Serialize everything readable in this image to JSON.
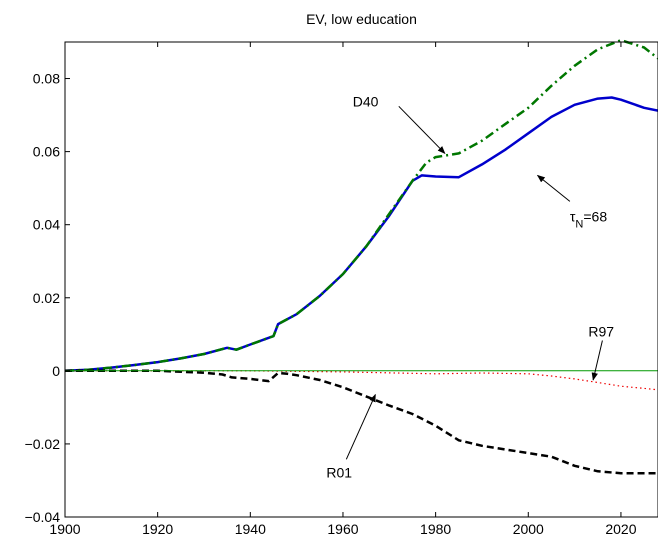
{
  "chart_data": {
    "type": "line",
    "title": "EV, low education",
    "xlabel": "",
    "ylabel": "",
    "xlim": [
      1900,
      2028
    ],
    "ylim": [
      -0.04,
      0.09
    ],
    "xticks": [
      1900,
      1920,
      1940,
      1960,
      1980,
      2000,
      2020
    ],
    "yticks": [
      -0.04,
      -0.02,
      0,
      0.02,
      0.04,
      0.06,
      0.08
    ],
    "xtick_labels": [
      "1900",
      "1920",
      "1940",
      "1960",
      "1980",
      "2000",
      "2020"
    ],
    "ytick_labels": [
      "−0.04",
      "−0.02",
      "0",
      "0.02",
      "0.04",
      "0.06",
      "0.08"
    ],
    "grid": false,
    "series": [
      {
        "name": "τN=68",
        "color": "#0000cc",
        "style": "solid",
        "x": [
          1900,
          1905,
          1910,
          1915,
          1920,
          1925,
          1930,
          1935,
          1937,
          1940,
          1945,
          1946,
          1950,
          1955,
          1960,
          1965,
          1970,
          1975,
          1977,
          1980,
          1985,
          1990,
          1995,
          2000,
          2005,
          2010,
          2015,
          2018,
          2020,
          2025,
          2028
        ],
        "y": [
          0,
          0.0003,
          0.0009,
          0.0016,
          0.0024,
          0.0034,
          0.0046,
          0.0063,
          0.0058,
          0.0072,
          0.0095,
          0.0128,
          0.0155,
          0.0205,
          0.0265,
          0.034,
          0.0425,
          0.052,
          0.0535,
          0.0532,
          0.053,
          0.0565,
          0.0605,
          0.065,
          0.0695,
          0.0728,
          0.0745,
          0.0748,
          0.0742,
          0.072,
          0.0712
        ]
      },
      {
        "name": "D40",
        "color": "#007700",
        "style": "dashdot",
        "x": [
          1900,
          1905,
          1910,
          1915,
          1920,
          1925,
          1930,
          1935,
          1937,
          1940,
          1945,
          1946,
          1950,
          1955,
          1960,
          1965,
          1970,
          1975,
          1978,
          1980,
          1985,
          1990,
          1995,
          2000,
          2005,
          2010,
          2015,
          2018,
          2020,
          2025,
          2028
        ],
        "y": [
          0,
          0.0003,
          0.0009,
          0.0016,
          0.0024,
          0.0034,
          0.0046,
          0.0063,
          0.0058,
          0.0072,
          0.0095,
          0.0128,
          0.0155,
          0.0205,
          0.0265,
          0.034,
          0.043,
          0.052,
          0.057,
          0.0585,
          0.0595,
          0.063,
          0.0675,
          0.072,
          0.078,
          0.0835,
          0.088,
          0.0895,
          0.0905,
          0.0885,
          0.0855
        ]
      },
      {
        "name": "R97",
        "color": "#ee0000",
        "style": "dotted",
        "x": [
          1900,
          1920,
          1940,
          1960,
          1980,
          1990,
          2000,
          2005,
          2010,
          2015,
          2020,
          2025,
          2028
        ],
        "y": [
          0,
          0,
          0,
          -0.0003,
          -0.0008,
          -0.0006,
          -0.0008,
          -0.0014,
          -0.0022,
          -0.0032,
          -0.0042,
          -0.0048,
          -0.0052
        ]
      },
      {
        "name": "R01",
        "color": "#000000",
        "style": "dashed",
        "x": [
          1900,
          1910,
          1920,
          1930,
          1934,
          1936,
          1940,
          1944,
          1946,
          1948,
          1950,
          1955,
          1960,
          1965,
          1970,
          1975,
          1980,
          1985,
          1990,
          2000,
          2005,
          2010,
          2015,
          2020,
          2025,
          2028
        ],
        "y": [
          0,
          0,
          0,
          -0.0005,
          -0.001,
          -0.0018,
          -0.0022,
          -0.0028,
          -0.0006,
          -0.0008,
          -0.0012,
          -0.0025,
          -0.0045,
          -0.007,
          -0.0095,
          -0.0118,
          -0.015,
          -0.019,
          -0.0205,
          -0.0225,
          -0.0235,
          -0.026,
          -0.0275,
          -0.028,
          -0.028,
          -0.028
        ]
      },
      {
        "name": "",
        "color": "#009900",
        "style": "thin",
        "x": [
          1900,
          2028
        ],
        "y": [
          0,
          0
        ]
      }
    ],
    "annotations": [
      {
        "name": "D40",
        "text": "D40",
        "point": [
          1982,
          0.0595
        ],
        "label_at": [
          1966,
          0.0735
        ]
      },
      {
        "name": "tauN",
        "text_main": "τ",
        "text_sub": "N",
        "text_tail": "=68",
        "point": [
          2002,
          0.0535
        ],
        "label_at": [
          2012,
          0.042
        ]
      },
      {
        "name": "R97",
        "text": "R97",
        "point": [
          2014,
          -0.0025
        ],
        "label_at": [
          2016,
          0.0105
        ]
      },
      {
        "name": "R01",
        "text": "R01",
        "point": [
          1967,
          -0.0065
        ],
        "label_at": [
          1959,
          -0.0275
        ]
      }
    ]
  }
}
